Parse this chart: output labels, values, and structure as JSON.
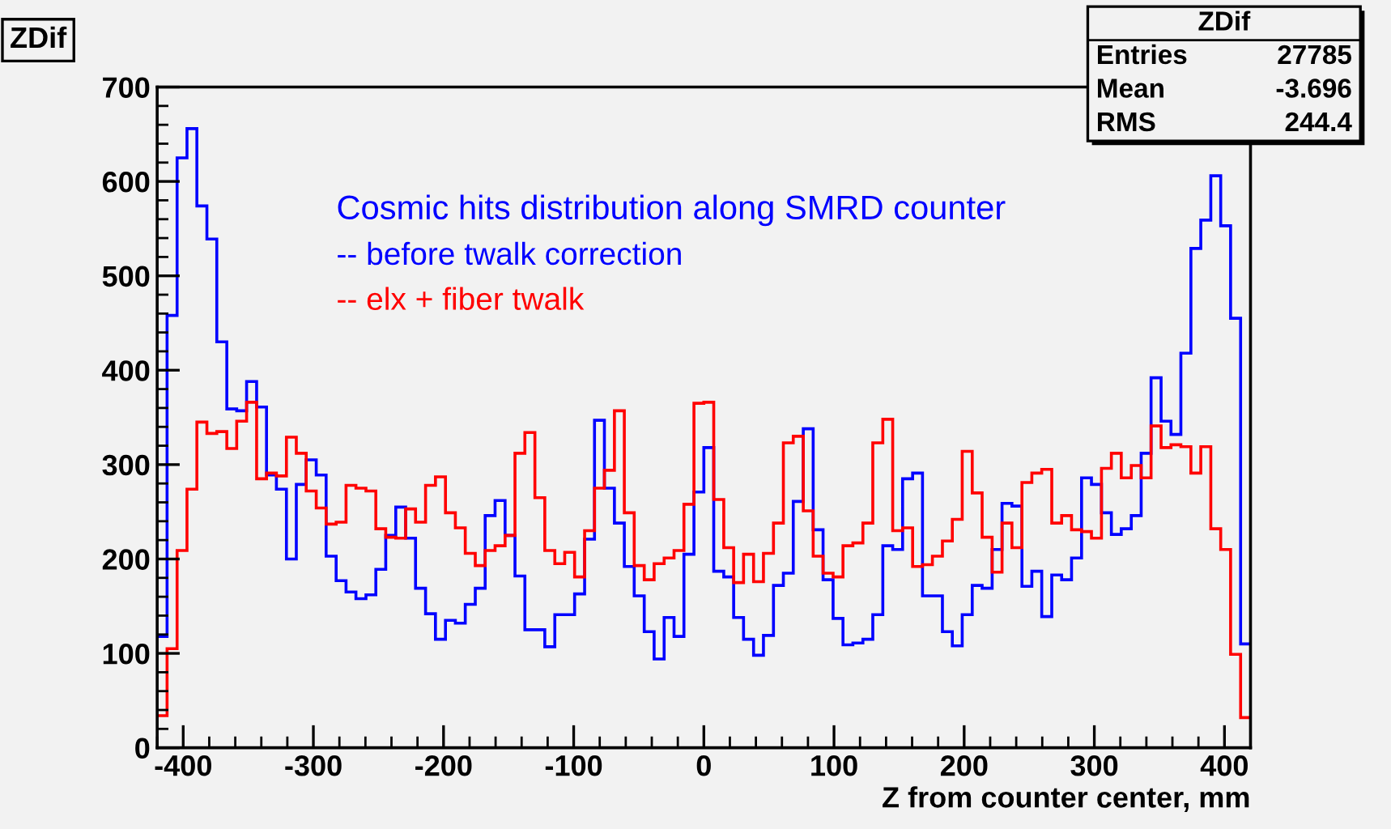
{
  "chart_data": {
    "type": "histogram",
    "title": "ZDif",
    "xlabel": "Z from counter center, mm",
    "legend_title": "Cosmic hits distribution along SMRD counter",
    "annotations": [
      "ZDif",
      "Entries",
      "27785",
      "Mean",
      "-3.696",
      "RMS",
      "244.4"
    ],
    "bins": [
      -420.0,
      -412.4,
      -404.7,
      -397.1,
      -389.5,
      -381.8,
      -374.2,
      -366.5,
      -358.9,
      -351.3,
      -343.6,
      -336.0,
      -328.4,
      -320.7,
      -313.1,
      -305.5,
      -297.8,
      -290.2,
      -282.5,
      -274.9,
      -267.3,
      -259.6,
      -252.0,
      -244.4,
      -236.7,
      -229.1,
      -221.5,
      -213.8,
      -206.2,
      -198.5,
      -190.9,
      -183.3,
      -175.6,
      -168.0,
      -160.4,
      -152.7,
      -145.1,
      -137.5,
      -129.8,
      -122.2,
      -114.5,
      -106.9,
      -99.3,
      -91.6,
      -84.0,
      -76.4,
      -68.7,
      -61.1,
      -53.5,
      -45.8,
      -38.2,
      -30.5,
      -22.9,
      -15.3,
      -7.6,
      0.0,
      7.6,
      15.3,
      22.9,
      30.5,
      38.2,
      45.8,
      53.5,
      61.1,
      68.7,
      76.4,
      84.0,
      91.6,
      99.3,
      106.9,
      114.5,
      122.2,
      129.8,
      137.5,
      145.1,
      152.7,
      160.4,
      168.0,
      175.6,
      183.3,
      190.9,
      198.5,
      206.2,
      213.8,
      221.5,
      229.1,
      236.7,
      244.4,
      252.0,
      259.6,
      267.3,
      274.9,
      282.5,
      290.2,
      297.8,
      305.5,
      313.1,
      320.7,
      328.4,
      336.0,
      343.6,
      351.3,
      358.9,
      366.5,
      374.2,
      381.8,
      389.5,
      397.1,
      404.7,
      412.4,
      420.0
    ],
    "series": [
      {
        "name": "-- before twalk correction",
        "color": "#0000ff",
        "values": [
          118,
          458,
          625,
          656,
          574,
          539,
          430,
          359,
          357,
          388,
          361,
          289,
          274,
          200,
          279,
          305,
          289,
          203,
          177,
          165,
          158,
          162,
          189,
          225,
          255,
          222,
          169,
          142,
          115,
          135,
          132,
          152,
          169,
          246,
          262,
          225,
          182,
          125,
          125,
          107,
          141,
          141,
          163,
          221,
          347,
          275,
          238,
          192,
          161,
          123,
          94,
          138,
          118,
          205,
          271,
          318,
          187,
          181,
          138,
          115,
          98,
          119,
          172,
          185,
          261,
          338,
          231,
          178,
          137,
          109,
          111,
          115,
          141,
          214,
          210,
          285,
          291,
          161,
          161,
          123,
          108,
          141,
          172,
          169,
          210,
          259,
          256,
          171,
          187,
          139,
          183,
          178,
          201,
          286,
          279,
          249,
          226,
          232,
          246,
          312,
          392,
          346,
          332,
          418,
          529,
          559,
          606,
          553,
          455,
          110
        ]
      },
      {
        "name": "-- elx + fiber twalk",
        "color": "#ff0000",
        "values": [
          34,
          105,
          209,
          274,
          345,
          333,
          335,
          317,
          346,
          366,
          285,
          291,
          288,
          329,
          312,
          272,
          254,
          237,
          239,
          278,
          275,
          272,
          232,
          223,
          222,
          253,
          239,
          278,
          287,
          249,
          233,
          206,
          193,
          209,
          214,
          225,
          312,
          334,
          265,
          209,
          195,
          207,
          181,
          230,
          275,
          294,
          357,
          249,
          193,
          178,
          195,
          201,
          209,
          258,
          365,
          366,
          263,
          212,
          175,
          205,
          176,
          206,
          238,
          323,
          330,
          251,
          203,
          185,
          181,
          214,
          217,
          238,
          323,
          348,
          230,
          233,
          192,
          194,
          203,
          219,
          242,
          314,
          270,
          223,
          186,
          238,
          212,
          281,
          291,
          295,
          238,
          246,
          231,
          229,
          222,
          296,
          312,
          286,
          299,
          286,
          341,
          318,
          321,
          319,
          291,
          319,
          232,
          210,
          99,
          32
        ]
      }
    ],
    "xlim": [
      -420,
      420
    ],
    "ylim": [
      0,
      700
    ],
    "xticks": [
      -400,
      -300,
      -200,
      -100,
      0,
      100,
      200,
      300,
      400
    ],
    "yticks": [
      0,
      100,
      200,
      300,
      400,
      500,
      600,
      700
    ],
    "grid": false,
    "legend": "top"
  }
}
